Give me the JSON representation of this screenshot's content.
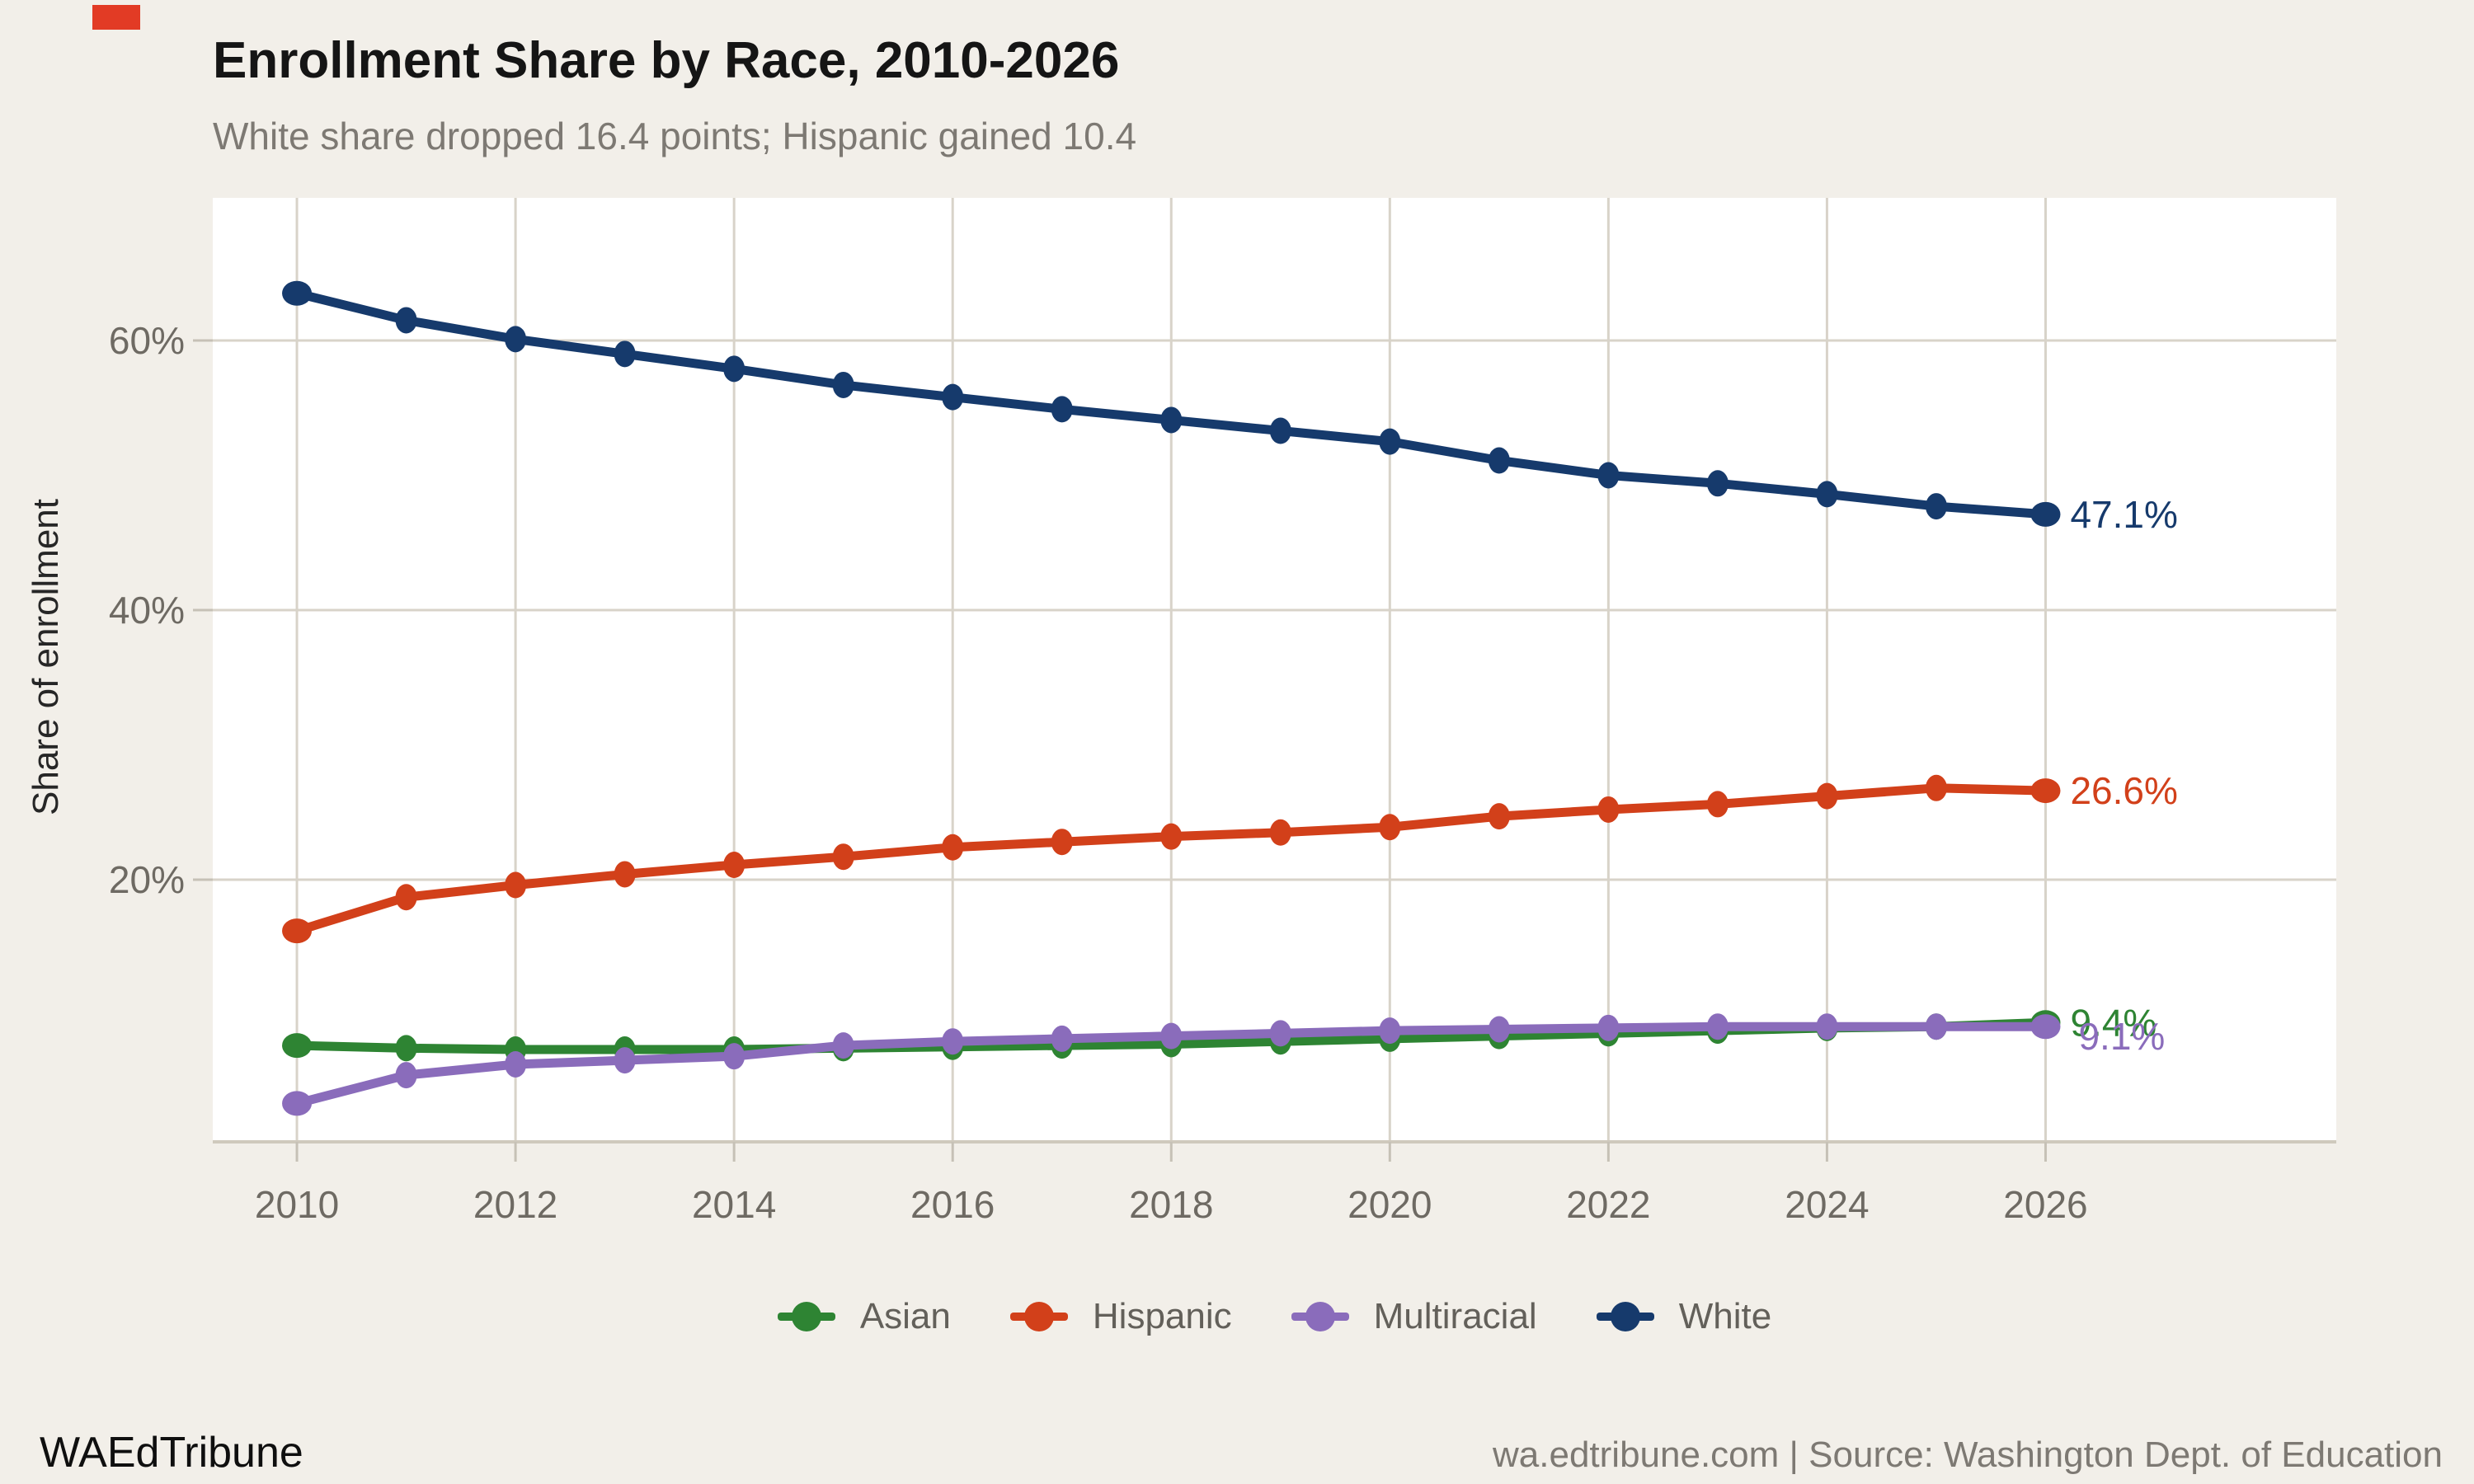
{
  "page": {
    "title": "Enrollment Share by Race, 2010-2026",
    "subtitle": "White share dropped 16.4 points; Hispanic gained 10.4",
    "footer_left": "WAEdTribune",
    "footer_right": "wa.edtribune.com | Source: Washington Dept. of Education"
  },
  "colors": {
    "background": "#f2efe9",
    "panel": "#ffffff",
    "gridline": "#d8d3c9",
    "axis_spine": "#cfc9bd",
    "tick_mark": "#c6c1b6",
    "axis_text": "#6e6a63",
    "title_text": "#151515",
    "muted_text": "#7d7973",
    "legend_text": "#63605a",
    "artifact_red": "#e23b25"
  },
  "chart_data": {
    "type": "line",
    "title": "Enrollment Share by Race, 2010-2026",
    "subtitle": "White share dropped 16.4 points; Hispanic gained 10.4",
    "ylabel": "Share of enrollment",
    "grid": true,
    "legend_position": "bottom",
    "x": [
      2010,
      2011,
      2012,
      2013,
      2014,
      2015,
      2016,
      2017,
      2018,
      2019,
      2020,
      2021,
      2022,
      2023,
      2024,
      2025,
      2026
    ],
    "x_ticks": [
      {
        "value": 2010,
        "label": "2010"
      },
      {
        "value": 2012,
        "label": "2012"
      },
      {
        "value": 2014,
        "label": "2014"
      },
      {
        "value": 2016,
        "label": "2016"
      },
      {
        "value": 2018,
        "label": "2018"
      },
      {
        "value": 2020,
        "label": "2020"
      },
      {
        "value": 2022,
        "label": "2022"
      },
      {
        "value": 2024,
        "label": "2024"
      },
      {
        "value": 2026,
        "label": "2026"
      }
    ],
    "y_ticks": [
      {
        "value": 20,
        "label": "20%"
      },
      {
        "value": 40,
        "label": "40%"
      },
      {
        "value": 60,
        "label": "60%"
      }
    ],
    "xlim": [
      2009.23,
      2028.66
    ],
    "ylim": [
      0.55,
      70.58
    ],
    "series": [
      {
        "name": "Asian",
        "color": "#2e8433",
        "values": [
          7.7,
          7.5,
          7.4,
          7.4,
          7.4,
          7.5,
          7.6,
          7.7,
          7.8,
          8.0,
          8.2,
          8.4,
          8.6,
          8.8,
          9.0,
          9.1,
          9.4
        ],
        "end_label": "9.4%"
      },
      {
        "name": "Hispanic",
        "color": "#d2401a",
        "values": [
          16.2,
          18.7,
          19.6,
          20.4,
          21.1,
          21.7,
          22.4,
          22.8,
          23.2,
          23.5,
          23.9,
          24.7,
          25.2,
          25.6,
          26.2,
          26.8,
          26.6
        ],
        "end_label": "26.6%"
      },
      {
        "name": "Multiracial",
        "color": "#8a6cbb",
        "values": [
          3.4,
          5.5,
          6.3,
          6.6,
          6.9,
          7.7,
          8.0,
          8.2,
          8.4,
          8.6,
          8.8,
          8.9,
          9.0,
          9.1,
          9.1,
          9.1,
          9.1
        ],
        "end_label": "9.1%"
      },
      {
        "name": "White",
        "color": "#163a6c",
        "values": [
          63.5,
          61.5,
          60.1,
          59.0,
          57.9,
          56.7,
          55.8,
          54.9,
          54.1,
          53.3,
          52.5,
          51.1,
          50.0,
          49.4,
          48.6,
          47.7,
          47.1
        ],
        "end_label": "47.1%"
      }
    ]
  }
}
